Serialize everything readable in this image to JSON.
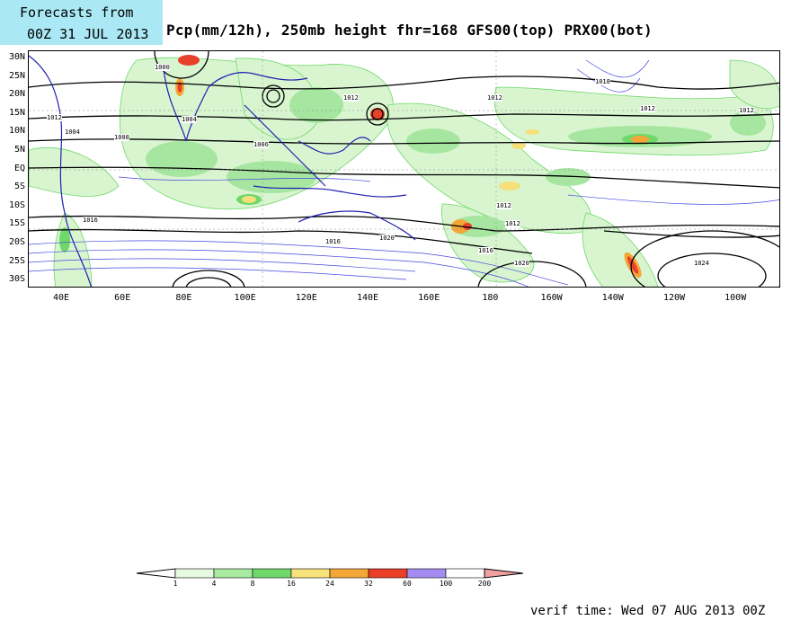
{
  "header": {
    "line1": "Forecasts from",
    "line2": "00Z 31 JUL 2013"
  },
  "title": "Pcp(mm/12h), 250mb height  fhr=168 GFS00(top) PRX00(bot)",
  "map": {
    "y_labels": [
      "30N",
      "25N",
      "20N",
      "15N",
      "10N",
      "5N",
      "EQ",
      "5S",
      "10S",
      "15S",
      "20S",
      "25S",
      "30S"
    ],
    "x_labels": [
      "40E",
      "60E",
      "80E",
      "100E",
      "120E",
      "140E",
      "160E",
      "180",
      "160W",
      "140W",
      "120W",
      "100W"
    ],
    "contour_labels": [
      "1000",
      "1004",
      "1008",
      "1012",
      "1016",
      "1020",
      "1024",
      "1018",
      "1006"
    ],
    "colors": {
      "light_green": "#d8f5d0",
      "green": "#a6e6a0",
      "mid_green": "#6fd86a",
      "yellow": "#f5e07a",
      "orange": "#f4a636",
      "red": "#e8402a",
      "purple": "#a08cf0",
      "coast": "#2020b0",
      "contour": "#000000",
      "thin_contour": "#4646e0"
    }
  },
  "colorbar": {
    "labels": [
      "1",
      "4",
      "8",
      "16",
      "24",
      "32",
      "60",
      "100",
      "200"
    ],
    "colors": [
      "#e6fadf",
      "#a8eaa0",
      "#6fd86a",
      "#f8e27c",
      "#f4a636",
      "#ea3e26",
      "#a48cf2",
      "#ffffff",
      "#f0a0a0"
    ]
  },
  "verif": "verif time: Wed 07 AUG 2013 00Z"
}
